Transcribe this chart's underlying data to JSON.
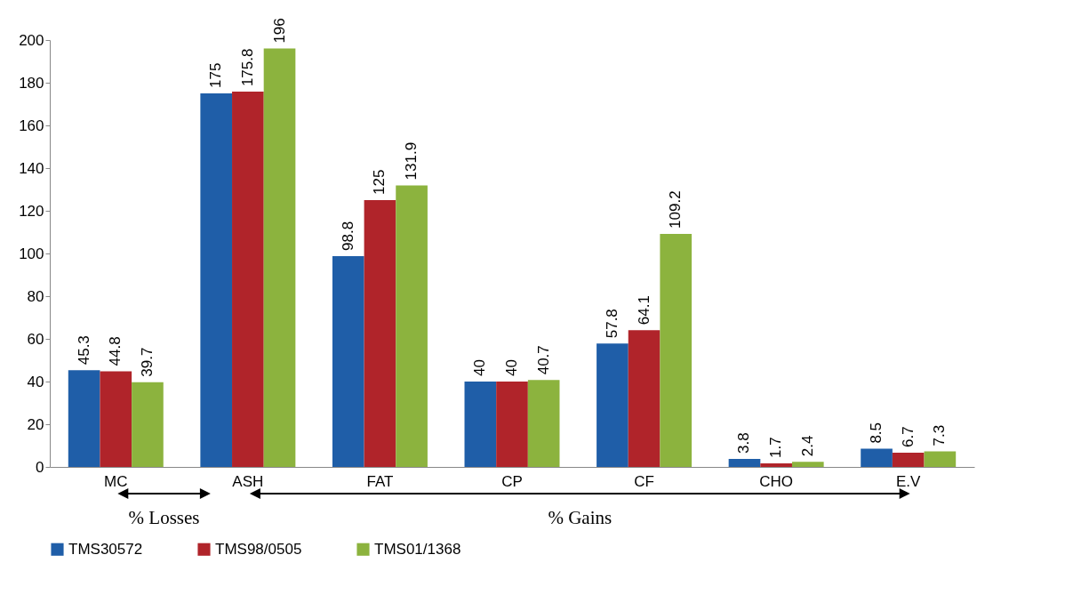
{
  "chart_data": {
    "type": "bar",
    "categories": [
      "MC",
      "ASH",
      "FAT",
      "CP",
      "CF",
      "CHO",
      "E.V"
    ],
    "series": [
      {
        "name": "TMS30572",
        "color": "#1f5ea8",
        "values": [
          45.3,
          175,
          98.8,
          40,
          57.8,
          3.8,
          8.5
        ]
      },
      {
        "name": "TMS98/0505",
        "color": "#b0242a",
        "values": [
          44.8,
          175.8,
          125,
          40,
          64.1,
          1.7,
          6.7
        ]
      },
      {
        "name": "TMS01/1368",
        "color": "#8cb33e",
        "values": [
          39.7,
          196,
          131.9,
          40.7,
          109.2,
          2.4,
          7.3
        ]
      }
    ],
    "ylim": [
      0,
      200
    ],
    "yticks": [
      0,
      20,
      40,
      60,
      80,
      100,
      120,
      140,
      160,
      180,
      200
    ],
    "data_labels": true,
    "legend": "bottom",
    "grid": false,
    "annotations": [
      "% Losses",
      "% Gains"
    ]
  }
}
